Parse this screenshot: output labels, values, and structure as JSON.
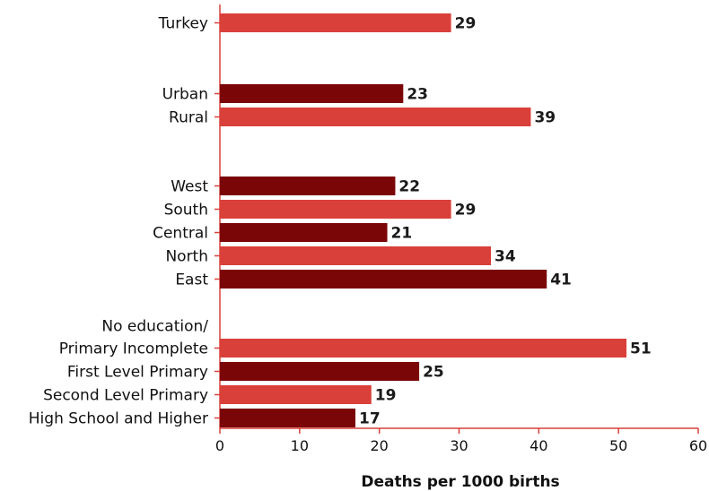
{
  "chart_data": {
    "type": "bar",
    "orientation": "horizontal",
    "xlabel": "Deaths per 1000 births",
    "ylabel": "",
    "xlim": [
      0,
      60
    ],
    "xticks": [
      0,
      10,
      20,
      30,
      40,
      50,
      60
    ],
    "grid": false,
    "legend": "none",
    "colors": {
      "light": "#d9403a",
      "dark": "#7a0608",
      "axis": "#d9403a"
    },
    "groups": [
      {
        "name": "",
        "bars": [
          {
            "label": "Turkey",
            "value": 29,
            "color": "light"
          }
        ]
      },
      {
        "name": "",
        "bars": [
          {
            "label": "Urban",
            "value": 23,
            "color": "dark"
          },
          {
            "label": "Rural",
            "value": 39,
            "color": "light"
          }
        ]
      },
      {
        "name": "",
        "bars": [
          {
            "label": "West",
            "value": 22,
            "color": "dark"
          },
          {
            "label": "South",
            "value": 29,
            "color": "light"
          },
          {
            "label": "Central",
            "value": 21,
            "color": "dark"
          },
          {
            "label": "North",
            "value": 34,
            "color": "light"
          },
          {
            "label": "East",
            "value": 41,
            "color": "dark"
          }
        ]
      },
      {
        "name": "",
        "bars": [
          {
            "label": [
              "No education/",
              "Primary Incomplete"
            ],
            "value": 51,
            "color": "light"
          },
          {
            "label": "First Level Primary",
            "value": 25,
            "color": "dark"
          },
          {
            "label": "Second Level Primary",
            "value": 19,
            "color": "light"
          },
          {
            "label": "High School and Higher",
            "value": 17,
            "color": "dark"
          }
        ]
      }
    ]
  }
}
